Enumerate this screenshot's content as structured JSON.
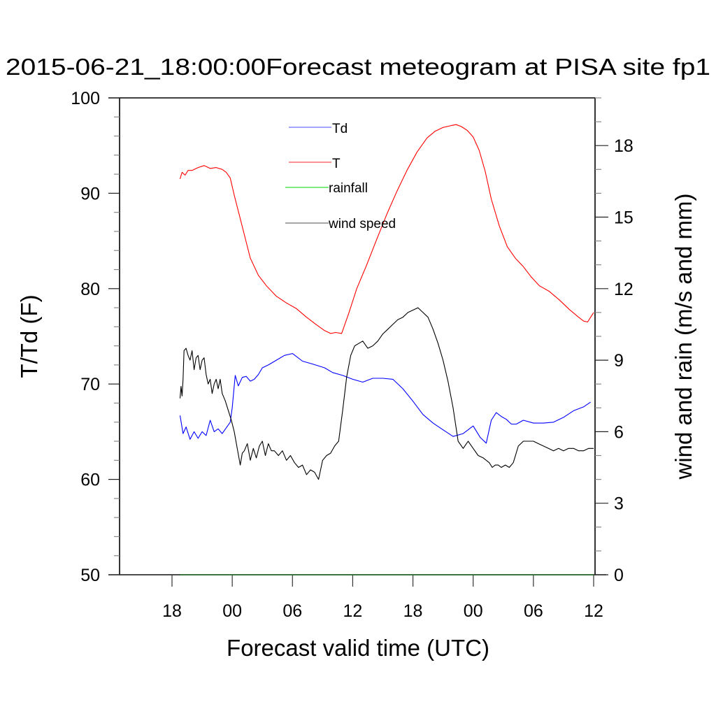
{
  "chart_data": {
    "type": "line",
    "title": "2015-06-21_18:00:00Forecast meteogram at PISA site fp1",
    "xlabel": "Forecast valid time (UTC)",
    "ylabel": "T/Td (F)",
    "ylabel_right": "wind and rain (m/s and mm)",
    "x_units": "hours since 2015-06-21 18:00 UTC",
    "xlim": [
      -5.2,
      42.2
    ],
    "ylim": [
      50,
      100
    ],
    "ylim_right": [
      0,
      20
    ],
    "x_ticks": [
      0,
      6,
      12,
      18,
      24,
      30,
      36,
      42
    ],
    "x_tick_labels": [
      "18",
      "00",
      "06",
      "12",
      "18",
      "00",
      "06",
      "12"
    ],
    "y_ticks": [
      50,
      60,
      70,
      80,
      90,
      100
    ],
    "y_tick_labels": [
      "50",
      "60",
      "70",
      "80",
      "90",
      "100"
    ],
    "y_right_ticks": [
      0,
      3,
      6,
      9,
      12,
      15,
      18
    ],
    "y_right_tick_labels": [
      "0",
      "3",
      "6",
      "9",
      "12",
      "15",
      "18"
    ],
    "grid": false,
    "legend_position": "top-center",
    "series": [
      {
        "name": "Td",
        "axis": "left",
        "color": "#0000ff",
        "x": [
          0.8,
          1.1,
          1.4,
          1.8,
          2.2,
          2.6,
          3.0,
          3.4,
          3.8,
          4.2,
          4.6,
          5.0,
          5.4,
          5.8,
          6.0,
          6.3,
          6.6,
          7.0,
          7.4,
          7.8,
          8.2,
          8.6,
          9.0,
          9.6,
          10.4,
          11.2,
          12.0,
          13.0,
          14.0,
          15.2,
          16.0,
          17.0,
          18.0,
          19.0,
          20.0,
          21.0,
          22.0,
          23.0,
          24.0,
          25.0,
          26.0,
          27.0,
          28.0,
          29.0,
          30.0,
          30.7,
          31.3,
          31.8,
          32.3,
          32.8,
          33.3,
          33.8,
          34.3,
          35.0,
          36.0,
          37.0,
          38.0,
          39.0,
          40.0,
          41.0,
          41.7
        ],
        "values": [
          66.7,
          64.8,
          65.5,
          64.2,
          65.0,
          64.3,
          65.0,
          64.6,
          66.2,
          65.0,
          65.3,
          64.8,
          65.4,
          66.0,
          67.5,
          70.9,
          69.8,
          70.7,
          70.8,
          70.3,
          70.5,
          71.0,
          71.7,
          72.0,
          72.5,
          73.0,
          73.2,
          72.4,
          72.1,
          71.7,
          71.2,
          70.9,
          70.5,
          70.2,
          70.6,
          70.6,
          70.5,
          69.5,
          68.2,
          66.8,
          65.9,
          65.2,
          64.5,
          64.8,
          65.6,
          64.4,
          63.8,
          66.2,
          67.0,
          66.6,
          66.3,
          65.8,
          65.8,
          66.2,
          65.9,
          65.9,
          66.0,
          66.5,
          67.2,
          67.6,
          68.1
        ]
      },
      {
        "name": "T",
        "axis": "left",
        "color": "#ff0000",
        "x": [
          0.8,
          1.0,
          1.3,
          1.6,
          2.0,
          2.6,
          3.2,
          3.8,
          4.4,
          5.0,
          5.4,
          5.8,
          6.2,
          7.0,
          7.8,
          8.6,
          9.4,
          10.4,
          11.4,
          12.4,
          13.4,
          14.4,
          15.2,
          15.8,
          16.3,
          16.9,
          17.6,
          18.4,
          19.4,
          20.4,
          21.4,
          22.4,
          23.4,
          24.4,
          25.4,
          26.2,
          27.0,
          27.8,
          28.3,
          28.8,
          29.4,
          30.0,
          30.6,
          31.2,
          31.8,
          32.6,
          33.4,
          34.2,
          35.0,
          35.8,
          36.6,
          37.6,
          38.6,
          39.6,
          40.4,
          41.0,
          41.4,
          41.7,
          42.0
        ],
        "values": [
          91.5,
          92.2,
          91.9,
          92.4,
          92.4,
          92.7,
          92.9,
          92.6,
          92.7,
          92.5,
          92.2,
          91.6,
          89.8,
          86.5,
          83.2,
          81.4,
          80.3,
          79.2,
          78.5,
          77.9,
          77.0,
          76.2,
          75.6,
          75.3,
          75.4,
          75.3,
          77.4,
          80.0,
          82.5,
          85.2,
          87.8,
          90.2,
          92.4,
          94.3,
          95.8,
          96.5,
          96.9,
          97.1,
          97.2,
          97.0,
          96.6,
          95.9,
          94.5,
          92.3,
          89.4,
          86.6,
          84.4,
          83.2,
          82.3,
          81.2,
          80.3,
          79.7,
          78.8,
          77.8,
          77.1,
          76.6,
          76.5,
          77.0,
          77.5
        ]
      },
      {
        "name": "rainfall",
        "axis": "right",
        "color": "#00ff00",
        "x": [
          0.8,
          42.0
        ],
        "values": [
          0.0,
          0.0
        ]
      },
      {
        "name": "wind speed",
        "axis": "right",
        "color": "#000000",
        "x": [
          0.8,
          0.9,
          1.0,
          1.1,
          1.2,
          1.4,
          1.6,
          1.8,
          2.0,
          2.2,
          2.4,
          2.6,
          2.8,
          3.0,
          3.2,
          3.4,
          3.6,
          3.8,
          4.0,
          4.2,
          4.4,
          4.6,
          4.8,
          5.0,
          5.3,
          5.6,
          5.9,
          6.2,
          6.5,
          6.8,
          7.0,
          7.2,
          7.5,
          7.8,
          8.1,
          8.4,
          8.7,
          9.0,
          9.3,
          9.6,
          9.9,
          10.2,
          10.6,
          11.0,
          11.4,
          11.8,
          12.2,
          12.6,
          13.0,
          13.4,
          13.8,
          14.2,
          14.6,
          15.0,
          15.4,
          15.8,
          16.2,
          16.6,
          17.0,
          17.4,
          17.8,
          18.2,
          18.6,
          19.0,
          19.5,
          20.0,
          20.5,
          21.0,
          21.5,
          22.0,
          22.5,
          23.0,
          23.5,
          24.0,
          24.5,
          25.0,
          25.5,
          26.0,
          26.5,
          27.0,
          27.5,
          28.0,
          28.5,
          29.0,
          29.5,
          30.0,
          30.5,
          31.0,
          31.3,
          31.6,
          31.9,
          32.2,
          32.5,
          32.8,
          33.2,
          33.6,
          34.0,
          34.5,
          35.0,
          35.5,
          36.0,
          36.5,
          37.0,
          37.5,
          38.0,
          38.5,
          39.0,
          39.5,
          40.0,
          40.5,
          41.0,
          41.5,
          42.0
        ],
        "values": [
          7.4,
          7.9,
          7.5,
          8.2,
          9.4,
          9.5,
          9.2,
          9.0,
          9.4,
          8.6,
          9.1,
          9.2,
          8.6,
          9.0,
          9.1,
          8.4,
          8.0,
          8.2,
          7.6,
          8.0,
          8.2,
          7.8,
          8.2,
          7.6,
          7.3,
          6.9,
          6.5,
          6.0,
          5.3,
          4.6,
          5.1,
          5.2,
          5.5,
          4.8,
          5.3,
          4.9,
          5.4,
          5.6,
          5.0,
          5.5,
          5.2,
          5.2,
          5.0,
          5.2,
          4.8,
          5.0,
          4.7,
          4.5,
          4.6,
          4.2,
          4.4,
          4.3,
          4.0,
          4.8,
          5.0,
          5.1,
          5.4,
          5.6,
          6.9,
          8.3,
          9.2,
          9.6,
          9.7,
          9.8,
          9.5,
          9.6,
          9.8,
          10.1,
          10.3,
          10.5,
          10.7,
          10.8,
          11.0,
          11.1,
          11.2,
          11.0,
          10.8,
          10.3,
          9.7,
          9.0,
          8.1,
          7.0,
          5.6,
          5.3,
          5.6,
          5.3,
          5.0,
          4.9,
          4.8,
          4.7,
          4.5,
          4.6,
          4.6,
          4.5,
          4.6,
          4.5,
          4.7,
          5.4,
          5.6,
          5.6,
          5.6,
          5.5,
          5.4,
          5.3,
          5.2,
          5.3,
          5.2,
          5.3,
          5.3,
          5.2,
          5.2,
          5.3,
          5.3
        ]
      }
    ]
  }
}
